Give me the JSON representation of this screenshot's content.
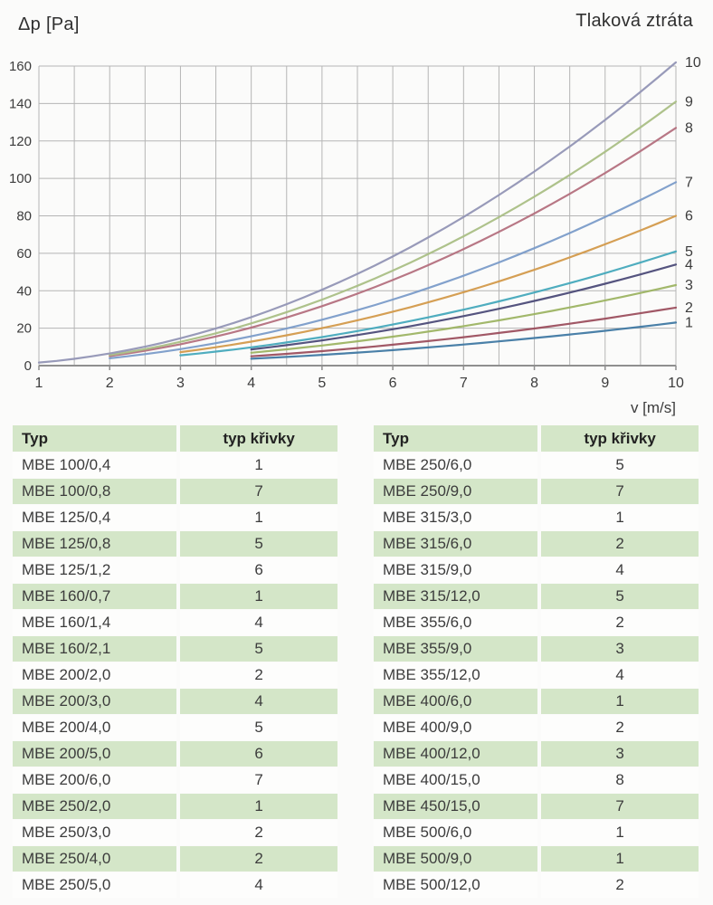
{
  "chart": {
    "title": "Tlaková ztráta",
    "y_axis_title": "Δp [Pa]",
    "x_axis_title": "v [m/s]"
  },
  "chart_data": {
    "type": "line",
    "title": "Tlaková ztráta",
    "xlabel": "v [m/s]",
    "ylabel": "Δp [Pa]",
    "xlim": [
      1,
      10
    ],
    "ylim": [
      0,
      160
    ],
    "x_ticks": [
      1,
      2,
      3,
      4,
      5,
      6,
      7,
      8,
      9,
      10
    ],
    "y_ticks": [
      0,
      20,
      40,
      60,
      80,
      100,
      120,
      140,
      160
    ],
    "x_grid_step": 0.5,
    "y_grid_step": 20,
    "grid": true,
    "legend_position": "right-of-curve-endpoints",
    "model": "dp = k * v^2 (Pa), curves labeled 1-10 at right edge",
    "series": [
      {
        "name": "1",
        "color": "#4079a3",
        "k": 0.23,
        "x_start": 4,
        "x_end": 10,
        "end_value": 23,
        "points": [
          [
            4,
            3.7
          ],
          [
            5,
            5.8
          ],
          [
            6,
            8.3
          ],
          [
            7,
            11.3
          ],
          [
            8,
            14.7
          ],
          [
            9,
            18.6
          ],
          [
            10,
            23
          ]
        ]
      },
      {
        "name": "2",
        "color": "#9c4f5e",
        "k": 0.31,
        "x_start": 4,
        "x_end": 10,
        "end_value": 31,
        "points": [
          [
            4,
            5.0
          ],
          [
            5,
            7.8
          ],
          [
            6,
            11.2
          ],
          [
            7,
            15.2
          ],
          [
            8,
            19.8
          ],
          [
            9,
            25.1
          ],
          [
            10,
            31
          ]
        ]
      },
      {
        "name": "3",
        "color": "#9db463",
        "k": 0.43,
        "x_start": 4,
        "x_end": 10,
        "end_value": 43,
        "points": [
          [
            4,
            6.9
          ],
          [
            5,
            10.8
          ],
          [
            6,
            15.5
          ],
          [
            7,
            21.1
          ],
          [
            8,
            27.5
          ],
          [
            9,
            34.8
          ],
          [
            10,
            43
          ]
        ]
      },
      {
        "name": "4",
        "color": "#4c4b78",
        "k": 0.54,
        "x_start": 4,
        "x_end": 10,
        "end_value": 54,
        "points": [
          [
            4,
            8.6
          ],
          [
            5,
            13.5
          ],
          [
            6,
            19.4
          ],
          [
            7,
            26.5
          ],
          [
            8,
            34.6
          ],
          [
            9,
            43.7
          ],
          [
            10,
            54
          ]
        ]
      },
      {
        "name": "5",
        "color": "#46a9bc",
        "k": 0.61,
        "x_start": 3,
        "x_end": 10,
        "end_value": 61,
        "points": [
          [
            3,
            5.5
          ],
          [
            4,
            9.8
          ],
          [
            5,
            15.3
          ],
          [
            6,
            22.0
          ],
          [
            7,
            29.9
          ],
          [
            8,
            39.0
          ],
          [
            9,
            49.4
          ],
          [
            10,
            61
          ]
        ]
      },
      {
        "name": "6",
        "color": "#d39a4b",
        "k": 0.8,
        "x_start": 3,
        "x_end": 10,
        "end_value": 80,
        "points": [
          [
            3,
            7.2
          ],
          [
            4,
            12.8
          ],
          [
            5,
            20.0
          ],
          [
            6,
            28.8
          ],
          [
            7,
            39.2
          ],
          [
            8,
            51.2
          ],
          [
            9,
            64.8
          ],
          [
            10,
            80
          ]
        ]
      },
      {
        "name": "7",
        "color": "#7b9cc9",
        "k": 0.98,
        "x_start": 2,
        "x_end": 10,
        "end_value": 98,
        "points": [
          [
            2,
            3.9
          ],
          [
            3,
            8.8
          ],
          [
            4,
            15.7
          ],
          [
            5,
            24.5
          ],
          [
            6,
            35.3
          ],
          [
            7,
            48.0
          ],
          [
            8,
            62.7
          ],
          [
            9,
            79.4
          ],
          [
            10,
            98
          ]
        ]
      },
      {
        "name": "8",
        "color": "#b4707e",
        "k": 1.27,
        "x_start": 2,
        "x_end": 10,
        "end_value": 127,
        "points": [
          [
            2,
            5.1
          ],
          [
            3,
            11.4
          ],
          [
            4,
            20.3
          ],
          [
            5,
            31.8
          ],
          [
            6,
            45.7
          ],
          [
            7,
            62.2
          ],
          [
            8,
            81.3
          ],
          [
            9,
            102.9
          ],
          [
            10,
            127
          ]
        ]
      },
      {
        "name": "9",
        "color": "#aabf85",
        "k": 1.41,
        "x_start": 2,
        "x_end": 10,
        "end_value": 141,
        "points": [
          [
            2,
            5.6
          ],
          [
            3,
            12.7
          ],
          [
            4,
            22.6
          ],
          [
            5,
            35.3
          ],
          [
            6,
            50.8
          ],
          [
            7,
            69.1
          ],
          [
            8,
            90.2
          ],
          [
            9,
            114.2
          ],
          [
            10,
            141
          ]
        ]
      },
      {
        "name": "10",
        "color": "#9295b5",
        "k": 1.62,
        "x_start": 1,
        "x_end": 10,
        "end_value": 162,
        "points": [
          [
            1,
            1.6
          ],
          [
            2,
            6.5
          ],
          [
            3,
            14.6
          ],
          [
            4,
            25.9
          ],
          [
            5,
            40.5
          ],
          [
            6,
            58.3
          ],
          [
            7,
            79.4
          ],
          [
            8,
            103.7
          ],
          [
            9,
            131.2
          ],
          [
            10,
            162
          ]
        ]
      }
    ]
  },
  "tables": [
    {
      "headers": [
        "Typ",
        "typ křivky"
      ],
      "rows": [
        [
          "MBE 100/0,4",
          "1"
        ],
        [
          "MBE 100/0,8",
          "7"
        ],
        [
          "MBE 125/0,4",
          "1"
        ],
        [
          "MBE 125/0,8",
          "5"
        ],
        [
          "MBE 125/1,2",
          "6"
        ],
        [
          "MBE 160/0,7",
          "1"
        ],
        [
          "MBE 160/1,4",
          "4"
        ],
        [
          "MBE 160/2,1",
          "5"
        ],
        [
          "MBE 200/2,0",
          "2"
        ],
        [
          "MBE 200/3,0",
          "4"
        ],
        [
          "MBE 200/4,0",
          "5"
        ],
        [
          "MBE 200/5,0",
          "6"
        ],
        [
          "MBE 200/6,0",
          "7"
        ],
        [
          "MBE 250/2,0",
          "1"
        ],
        [
          "MBE 250/3,0",
          "2"
        ],
        [
          "MBE 250/4,0",
          "2"
        ],
        [
          "MBE 250/5,0",
          "4"
        ]
      ]
    },
    {
      "headers": [
        "Typ",
        "typ křivky"
      ],
      "rows": [
        [
          "MBE 250/6,0",
          "5"
        ],
        [
          "MBE 250/9,0",
          "7"
        ],
        [
          "MBE 315/3,0",
          "1"
        ],
        [
          "MBE 315/6,0",
          "2"
        ],
        [
          "MBE 315/9,0",
          "4"
        ],
        [
          "MBE 315/12,0",
          "5"
        ],
        [
          "MBE 355/6,0",
          "2"
        ],
        [
          "MBE 355/9,0",
          "3"
        ],
        [
          "MBE 355/12,0",
          "4"
        ],
        [
          "MBE 400/6,0",
          "1"
        ],
        [
          "MBE 400/9,0",
          "2"
        ],
        [
          "MBE 400/12,0",
          "3"
        ],
        [
          "MBE 400/15,0",
          "8"
        ],
        [
          "MBE 450/15,0",
          "7"
        ],
        [
          "MBE 500/6,0",
          "1"
        ],
        [
          "MBE 500/9,0",
          "1"
        ],
        [
          "MBE 500/12,0",
          "2"
        ]
      ]
    }
  ],
  "colors": {
    "table_header_bg": "#d4e6c8",
    "table_stripe_bg": "#d4e6c8",
    "grid_line": "#b5b5b5",
    "axis_line": "#8f8f8f",
    "text": "#3c3c3c"
  }
}
